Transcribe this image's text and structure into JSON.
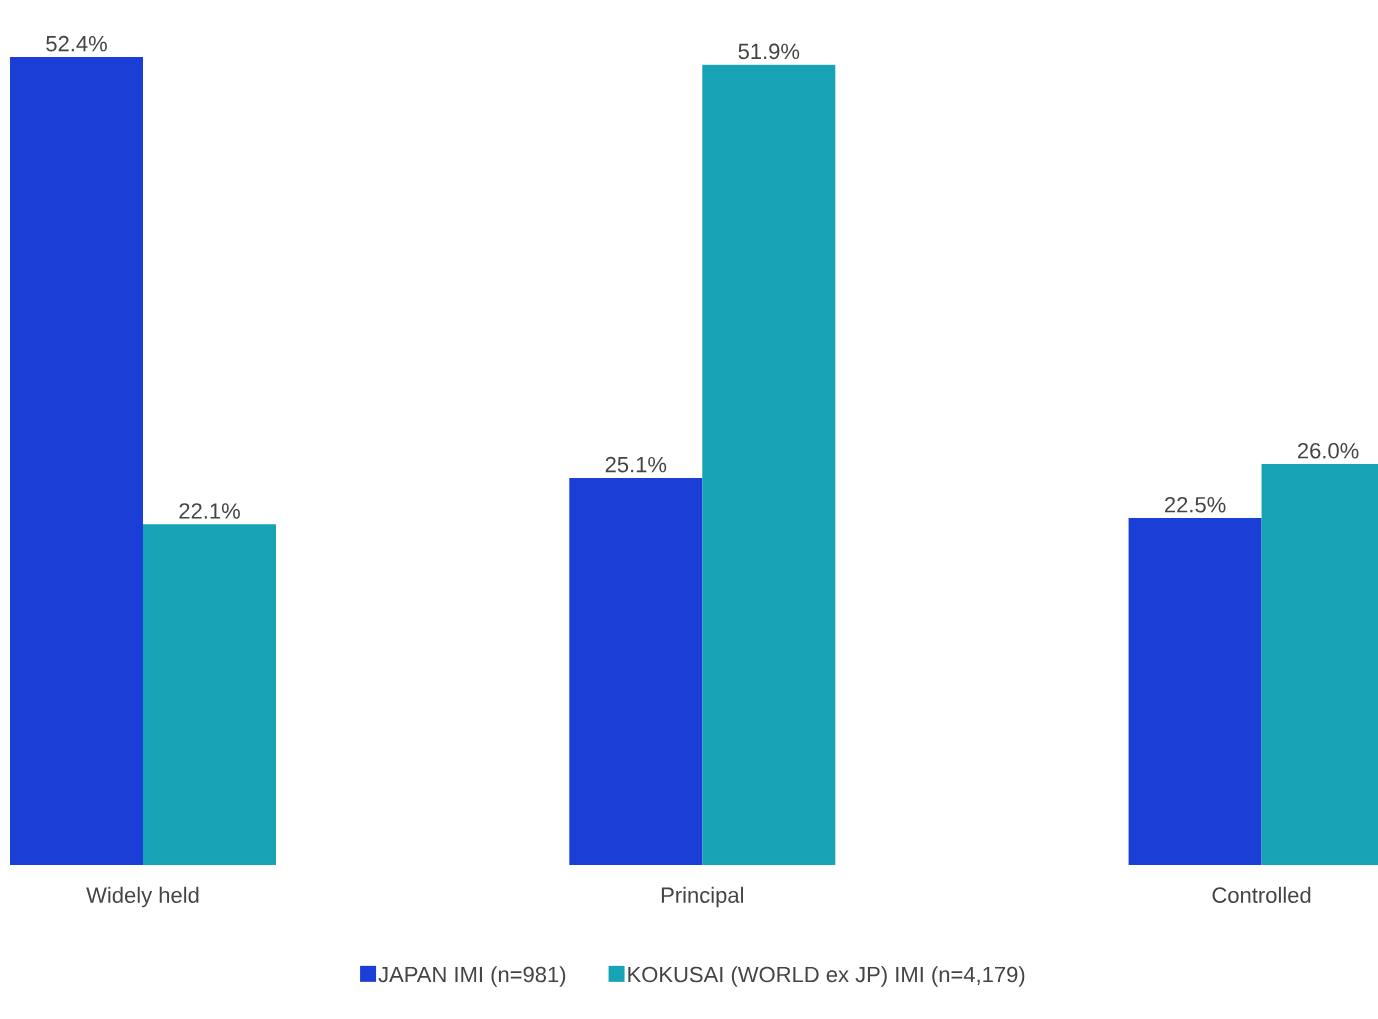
{
  "chart_data": {
    "type": "bar",
    "categories": [
      "Widely held",
      "Principal",
      "Controlled"
    ],
    "series": [
      {
        "name": "JAPAN IMI (n=981)",
        "color": "#1b3fd6",
        "values": [
          52.4,
          25.1,
          22.5
        ],
        "value_labels": [
          "52.4%",
          "25.1%",
          "22.5%"
        ]
      },
      {
        "name": "KOKUSAI (WORLD ex JP) IMI (n=4,179)",
        "color": "#17a3b5",
        "values": [
          22.1,
          51.9,
          26.0
        ],
        "value_labels": [
          "22.1%",
          "51.9%",
          "26.0%"
        ]
      }
    ],
    "legend": "bottom"
  }
}
